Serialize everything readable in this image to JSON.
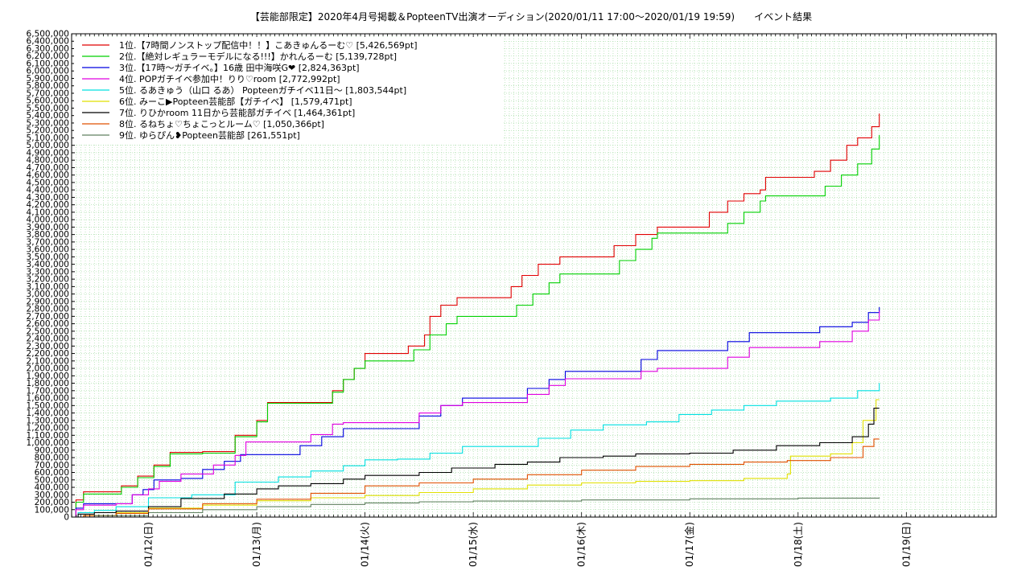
{
  "chart_data": {
    "type": "line",
    "title": "【芸能部限定】2020年4月号掲載＆PopteenTV出演オーディション(2020/01/11 17:00〜2020/01/19 19:59)　　イベント結果",
    "xlabel": "",
    "ylabel": "",
    "ylim": [
      0,
      6500000
    ],
    "y_step": 100000,
    "x_ticks": [
      {
        "day": 1,
        "label": "01/12(日)"
      },
      {
        "day": 2,
        "label": "01/13(月)"
      },
      {
        "day": 3,
        "label": "01/14(火)"
      },
      {
        "day": 4,
        "label": "01/15(水)"
      },
      {
        "day": 5,
        "label": "01/16(木)"
      },
      {
        "day": 6,
        "label": "01/17(金)"
      },
      {
        "day": 7,
        "label": "01/18(土)"
      },
      {
        "day": 8,
        "label": "01/19(日)"
      }
    ],
    "xlim_days": [
      0.29,
      8.83
    ],
    "grid": true,
    "legend_position": "top-left",
    "series": [
      {
        "name": "1位.【7時間ノンストップ配信中！！】こあきゅんるーむ♡ [5,426,569pt]",
        "color": "#e00000",
        "points": [
          [
            0.29,
            0
          ],
          [
            0.33,
            230000
          ],
          [
            0.4,
            340000
          ],
          [
            0.6,
            340000
          ],
          [
            0.75,
            420000
          ],
          [
            0.9,
            550000
          ],
          [
            1.05,
            700000
          ],
          [
            1.2,
            870000
          ],
          [
            1.5,
            880000
          ],
          [
            1.8,
            1100000
          ],
          [
            2.0,
            1300000
          ],
          [
            2.1,
            1540000
          ],
          [
            2.5,
            1540000
          ],
          [
            2.7,
            1700000
          ],
          [
            2.8,
            1850000
          ],
          [
            2.9,
            2000000
          ],
          [
            3.0,
            2200000
          ],
          [
            3.3,
            2200000
          ],
          [
            3.4,
            2300000
          ],
          [
            3.55,
            2450000
          ],
          [
            3.6,
            2700000
          ],
          [
            3.7,
            2850000
          ],
          [
            3.85,
            2950000
          ],
          [
            4.2,
            2950000
          ],
          [
            4.35,
            3100000
          ],
          [
            4.45,
            3250000
          ],
          [
            4.6,
            3400000
          ],
          [
            4.8,
            3500000
          ],
          [
            5.15,
            3500000
          ],
          [
            5.3,
            3650000
          ],
          [
            5.5,
            3800000
          ],
          [
            5.7,
            3900000
          ],
          [
            6.15,
            3900000
          ],
          [
            6.18,
            4100000
          ],
          [
            6.35,
            4250000
          ],
          [
            6.5,
            4350000
          ],
          [
            6.65,
            4400000
          ],
          [
            6.7,
            4570000
          ],
          [
            7.05,
            4570000
          ],
          [
            7.15,
            4650000
          ],
          [
            7.3,
            4800000
          ],
          [
            7.45,
            5000000
          ],
          [
            7.55,
            5100000
          ],
          [
            7.68,
            5250000
          ],
          [
            7.75,
            5426569
          ]
        ]
      },
      {
        "name": "2位.【絶対レギュラーモデルになる!!!】かれんるーむ [5,139,728pt]",
        "color": "#00d000",
        "points": [
          [
            0.29,
            0
          ],
          [
            0.33,
            200000
          ],
          [
            0.4,
            310000
          ],
          [
            0.6,
            310000
          ],
          [
            0.75,
            400000
          ],
          [
            0.9,
            530000
          ],
          [
            1.05,
            680000
          ],
          [
            1.2,
            850000
          ],
          [
            1.5,
            860000
          ],
          [
            1.8,
            1080000
          ],
          [
            2.0,
            1280000
          ],
          [
            2.1,
            1530000
          ],
          [
            2.5,
            1530000
          ],
          [
            2.7,
            1680000
          ],
          [
            2.8,
            1850000
          ],
          [
            2.9,
            2000000
          ],
          [
            3.0,
            2100000
          ],
          [
            3.3,
            2100000
          ],
          [
            3.45,
            2250000
          ],
          [
            3.6,
            2450000
          ],
          [
            3.75,
            2600000
          ],
          [
            3.85,
            2700000
          ],
          [
            4.25,
            2700000
          ],
          [
            4.4,
            2850000
          ],
          [
            4.55,
            3000000
          ],
          [
            4.7,
            3150000
          ],
          [
            4.8,
            3270000
          ],
          [
            5.2,
            3270000
          ],
          [
            5.35,
            3450000
          ],
          [
            5.5,
            3600000
          ],
          [
            5.65,
            3750000
          ],
          [
            5.7,
            3820000
          ],
          [
            6.2,
            3820000
          ],
          [
            6.35,
            3950000
          ],
          [
            6.5,
            4100000
          ],
          [
            6.65,
            4250000
          ],
          [
            6.7,
            4320000
          ],
          [
            7.1,
            4320000
          ],
          [
            7.25,
            4450000
          ],
          [
            7.4,
            4600000
          ],
          [
            7.55,
            4750000
          ],
          [
            7.68,
            4950000
          ],
          [
            7.75,
            5139728
          ]
        ]
      },
      {
        "name": "3位.【17時〜ガチイベ。】16歳 田中海咲G❤ [2,824,363pt]",
        "color": "#0000e0",
        "points": [
          [
            0.29,
            0
          ],
          [
            0.33,
            120000
          ],
          [
            0.4,
            180000
          ],
          [
            0.7,
            180000
          ],
          [
            0.85,
            300000
          ],
          [
            0.95,
            370000
          ],
          [
            1.05,
            500000
          ],
          [
            1.3,
            520000
          ],
          [
            1.5,
            640000
          ],
          [
            1.7,
            750000
          ],
          [
            1.85,
            840000
          ],
          [
            2.2,
            840000
          ],
          [
            2.4,
            960000
          ],
          [
            2.6,
            1080000
          ],
          [
            2.8,
            1190000
          ],
          [
            3.3,
            1190000
          ],
          [
            3.5,
            1360000
          ],
          [
            3.7,
            1500000
          ],
          [
            3.9,
            1600000
          ],
          [
            4.3,
            1600000
          ],
          [
            4.5,
            1730000
          ],
          [
            4.7,
            1850000
          ],
          [
            4.85,
            1960000
          ],
          [
            5.35,
            1960000
          ],
          [
            5.55,
            2120000
          ],
          [
            5.7,
            2240000
          ],
          [
            6.2,
            2240000
          ],
          [
            6.35,
            2360000
          ],
          [
            6.55,
            2480000
          ],
          [
            7.0,
            2480000
          ],
          [
            7.2,
            2560000
          ],
          [
            7.5,
            2620000
          ],
          [
            7.65,
            2750000
          ],
          [
            7.75,
            2824363
          ]
        ]
      },
      {
        "name": "4位. POPガチイベ参加中！りり♡room [2,772,992pt]",
        "color": "#e000e0",
        "points": [
          [
            0.29,
            0
          ],
          [
            0.33,
            100000
          ],
          [
            0.4,
            160000
          ],
          [
            0.7,
            180000
          ],
          [
            0.85,
            300000
          ],
          [
            1.0,
            380000
          ],
          [
            1.1,
            480000
          ],
          [
            1.3,
            580000
          ],
          [
            1.6,
            700000
          ],
          [
            1.8,
            830000
          ],
          [
            1.9,
            1010000
          ],
          [
            2.3,
            1010000
          ],
          [
            2.5,
            1110000
          ],
          [
            2.7,
            1250000
          ],
          [
            2.8,
            1270000
          ],
          [
            3.3,
            1270000
          ],
          [
            3.5,
            1400000
          ],
          [
            3.7,
            1500000
          ],
          [
            3.9,
            1540000
          ],
          [
            4.3,
            1540000
          ],
          [
            4.5,
            1650000
          ],
          [
            4.7,
            1770000
          ],
          [
            4.85,
            1860000
          ],
          [
            5.35,
            1860000
          ],
          [
            5.55,
            1960000
          ],
          [
            5.7,
            2000000
          ],
          [
            6.2,
            2000000
          ],
          [
            6.35,
            2150000
          ],
          [
            6.55,
            2280000
          ],
          [
            7.0,
            2280000
          ],
          [
            7.2,
            2360000
          ],
          [
            7.5,
            2500000
          ],
          [
            7.65,
            2650000
          ],
          [
            7.75,
            2772992
          ]
        ]
      },
      {
        "name": "5位. るあきゅう（山口 るあ） Popteenガチイベ11日〜 [1,803,544pt]",
        "color": "#00e0e0",
        "points": [
          [
            0.29,
            0
          ],
          [
            0.35,
            60000
          ],
          [
            0.5,
            90000
          ],
          [
            0.7,
            140000
          ],
          [
            1.0,
            260000
          ],
          [
            1.4,
            300000
          ],
          [
            1.8,
            470000
          ],
          [
            2.2,
            540000
          ],
          [
            2.5,
            620000
          ],
          [
            2.8,
            690000
          ],
          [
            3.0,
            770000
          ],
          [
            3.3,
            780000
          ],
          [
            3.6,
            860000
          ],
          [
            3.9,
            950000
          ],
          [
            4.3,
            950000
          ],
          [
            4.6,
            1060000
          ],
          [
            4.9,
            1170000
          ],
          [
            5.2,
            1240000
          ],
          [
            5.6,
            1280000
          ],
          [
            5.9,
            1380000
          ],
          [
            6.2,
            1440000
          ],
          [
            6.5,
            1500000
          ],
          [
            6.8,
            1560000
          ],
          [
            7.3,
            1600000
          ],
          [
            7.55,
            1700000
          ],
          [
            7.75,
            1803544
          ]
        ]
      },
      {
        "name": "6位. みーこ▶Popteen芸能部【ガチイベ】 [1,579,471pt]",
        "color": "#e0e000",
        "points": [
          [
            0.29,
            0
          ],
          [
            0.4,
            20000
          ],
          [
            0.7,
            60000
          ],
          [
            1.0,
            120000
          ],
          [
            1.5,
            160000
          ],
          [
            2.0,
            220000
          ],
          [
            2.5,
            260000
          ],
          [
            3.0,
            290000
          ],
          [
            3.5,
            330000
          ],
          [
            4.0,
            380000
          ],
          [
            4.5,
            430000
          ],
          [
            5.0,
            460000
          ],
          [
            5.5,
            480000
          ],
          [
            6.0,
            490000
          ],
          [
            6.5,
            520000
          ],
          [
            6.9,
            580000
          ],
          [
            6.93,
            820000
          ],
          [
            7.3,
            850000
          ],
          [
            7.5,
            1000000
          ],
          [
            7.6,
            1300000
          ],
          [
            7.7,
            1300000
          ],
          [
            7.72,
            1579471
          ],
          [
            7.75,
            1579471
          ]
        ]
      },
      {
        "name": "7位. りひかroom 11日から芸能部ガチイベ [1,464,361pt]",
        "color": "#000000",
        "points": [
          [
            0.29,
            0
          ],
          [
            0.35,
            40000
          ],
          [
            0.5,
            60000
          ],
          [
            0.7,
            80000
          ],
          [
            1.0,
            140000
          ],
          [
            1.3,
            250000
          ],
          [
            1.7,
            310000
          ],
          [
            2.0,
            380000
          ],
          [
            2.2,
            420000
          ],
          [
            2.5,
            450000
          ],
          [
            2.8,
            510000
          ],
          [
            3.0,
            560000
          ],
          [
            3.5,
            600000
          ],
          [
            3.8,
            660000
          ],
          [
            4.2,
            710000
          ],
          [
            4.5,
            740000
          ],
          [
            4.8,
            800000
          ],
          [
            5.2,
            820000
          ],
          [
            5.5,
            850000
          ],
          [
            6.0,
            860000
          ],
          [
            6.4,
            900000
          ],
          [
            6.8,
            960000
          ],
          [
            7.2,
            1000000
          ],
          [
            7.5,
            1080000
          ],
          [
            7.65,
            1250000
          ],
          [
            7.7,
            1464361
          ],
          [
            7.75,
            1464361
          ]
        ]
      },
      {
        "name": "8位. るねちょ♡ちょこっとルーム♡ [1,050,366pt]",
        "color": "#e05000",
        "points": [
          [
            0.29,
            0
          ],
          [
            0.4,
            20000
          ],
          [
            0.7,
            50000
          ],
          [
            1.0,
            110000
          ],
          [
            1.5,
            180000
          ],
          [
            2.0,
            240000
          ],
          [
            2.5,
            320000
          ],
          [
            3.0,
            420000
          ],
          [
            3.5,
            460000
          ],
          [
            4.0,
            510000
          ],
          [
            4.5,
            570000
          ],
          [
            5.0,
            630000
          ],
          [
            5.5,
            680000
          ],
          [
            6.0,
            710000
          ],
          [
            6.5,
            740000
          ],
          [
            6.9,
            760000
          ],
          [
            7.3,
            800000
          ],
          [
            7.6,
            950000
          ],
          [
            7.7,
            1050366
          ],
          [
            7.75,
            1050366
          ]
        ]
      },
      {
        "name": "9位. ゆらぴん❥Popteen芸能部 [261,551pt]",
        "color": "#608060",
        "points": [
          [
            0.29,
            0
          ],
          [
            0.5,
            20000
          ],
          [
            1.0,
            60000
          ],
          [
            1.5,
            100000
          ],
          [
            2.0,
            140000
          ],
          [
            2.5,
            170000
          ],
          [
            3.0,
            190000
          ],
          [
            3.5,
            205000
          ],
          [
            4.0,
            215000
          ],
          [
            5.0,
            230000
          ],
          [
            6.0,
            245000
          ],
          [
            7.0,
            255000
          ],
          [
            7.75,
            261551
          ]
        ]
      }
    ]
  }
}
